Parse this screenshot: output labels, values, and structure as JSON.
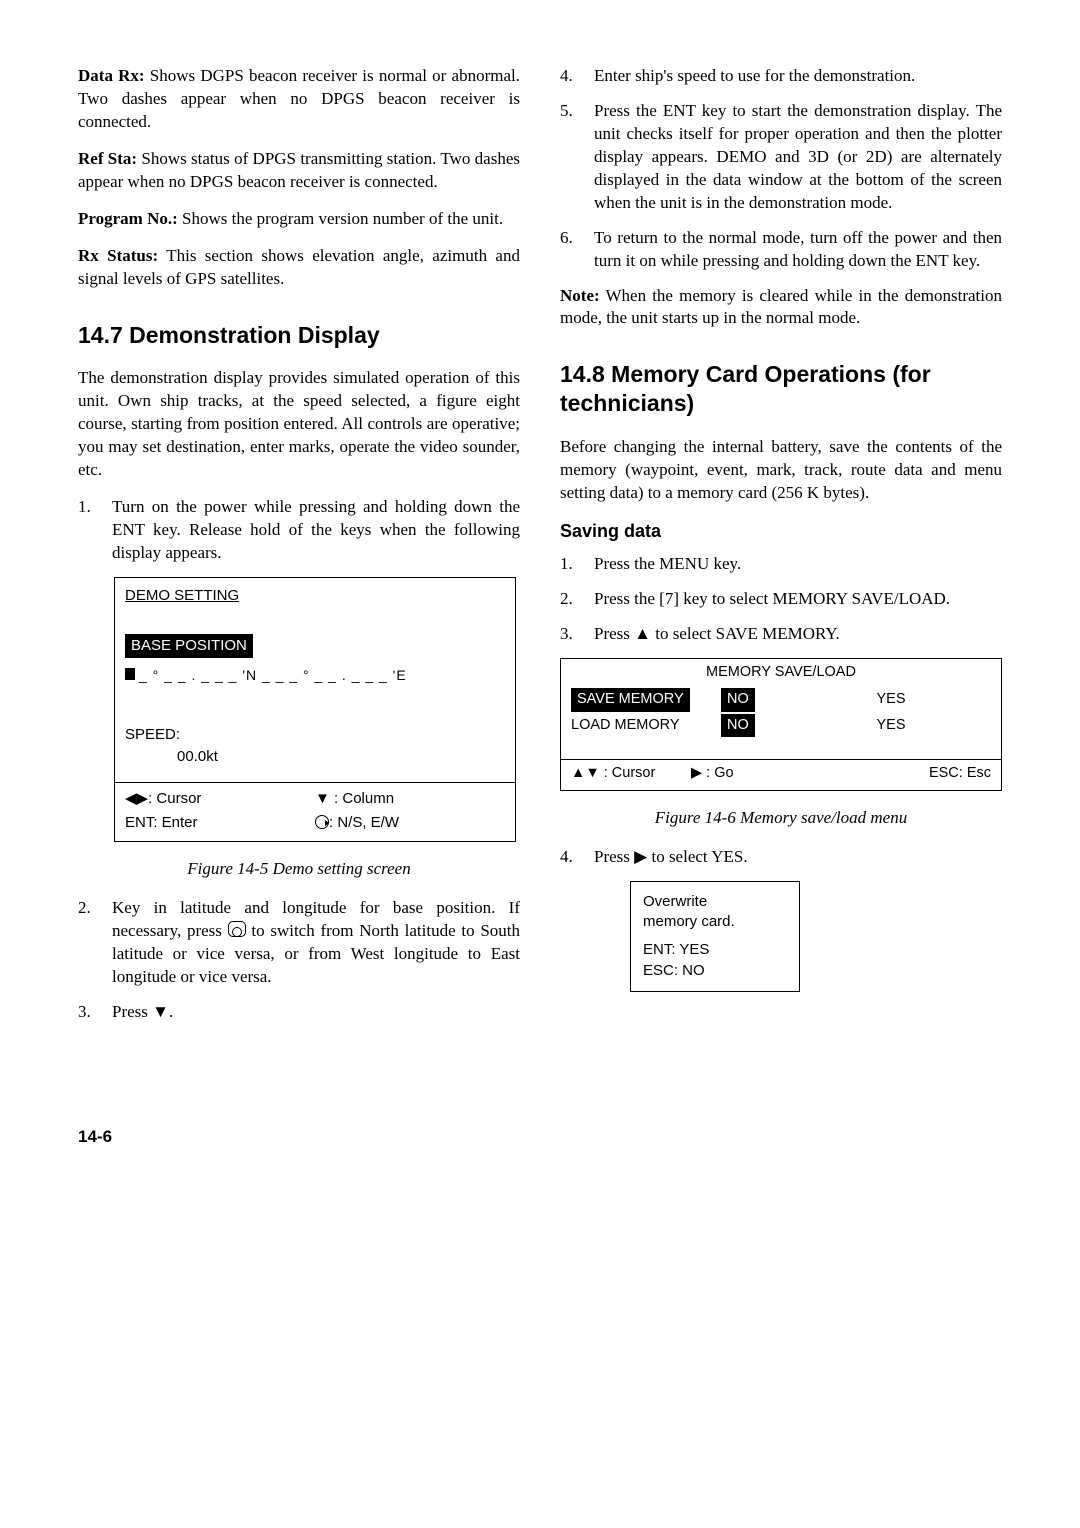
{
  "left": {
    "defs": [
      {
        "term": "Data Rx:",
        "body": " Shows DGPS beacon receiver is normal or abnormal. Two dashes appear when no DPGS beacon receiver is connected."
      },
      {
        "term": "Ref Sta:",
        "body": " Shows status of DPGS transmitting station. Two dashes appear when no DPGS beacon receiver is connected."
      },
      {
        "term": "Program No.:",
        "body": " Shows the program version number of the unit."
      },
      {
        "term": "Rx Status:",
        "body": " This section shows elevation angle, azimuth and signal levels of GPS satellites."
      }
    ],
    "h_147": "14.7 Demonstration Display",
    "intro_147": "The demonstration display provides simulated operation of this unit. Own ship tracks, at the speed selected, a figure eight course, starting from position entered. All controls are operative; you may set destination, enter marks, operate the video sounder, etc.",
    "step1": "Turn on the power while pressing and holding down the ENT key. Release hold of the keys when the following display appears.",
    "figA": {
      "title": "DEMO SETTING",
      "base_label": "BASE POSITION",
      "coords": "_ ° _ _ . _ _ _ 'N  _ _ _ ° _ _ . _ _ _ 'E",
      "speed_label": "SPEED:",
      "speed_value": "00.0kt",
      "bl_tl": ": Cursor",
      "bl_tr": " : Column",
      "bl_bl": "ENT: Enter",
      "bl_br": ": N/S, E/W"
    },
    "captionA": "Figure 14-5 Demo setting screen",
    "step2_a": "Key in latitude and longitude for base position. If necessary, press ",
    "step2_b": " to switch from North latitude to South latitude or vice versa, or from West longitude to East longitude or vice versa.",
    "step3": "Press ▼."
  },
  "right": {
    "step4": "Enter ship's speed to use for the demonstration.",
    "step5": "Press the ENT key to start the demonstration display. The unit checks itself for proper operation and then the plotter display appears. DEMO and 3D (or 2D) are alternately displayed in the data window at the bottom of the screen when the unit is in the demonstration mode.",
    "step6": "To return to the normal mode, turn off the power and then turn it on while pressing and holding down the ENT key.",
    "note_term": "Note:",
    "note_body": " When the memory is cleared while in the demonstration mode, the unit starts up in the normal mode.",
    "h_148": "14.8 Memory Card Operations (for technicians)",
    "intro_148": "Before changing the internal battery, save the contents of the memory (waypoint, event, mark, track, route data and menu setting data) to a memory card (256 K bytes).",
    "h_saving": "Saving data",
    "s1": "Press the MENU key.",
    "s2": "Press the [7] key to select MEMORY SAVE/LOAD.",
    "s3": "Press ▲ to select SAVE MEMORY.",
    "figB": {
      "title": "MEMORY SAVE/LOAD",
      "row1_label": "SAVE MEMORY",
      "row1_no": "NO",
      "row1_yes": "YES",
      "row2_label": "LOAD MEMORY",
      "row2_no": "NO",
      "row2_yes": "YES",
      "bot_c1": " : Cursor",
      "bot_c2": " : Go",
      "bot_c3": "ESC: Esc"
    },
    "captionB": "Figure 14-6 Memory save/load menu",
    "s4": "Press ▶ to select YES.",
    "figC": {
      "l1": "Overwrite",
      "l2": "memory card.",
      "l3": "ENT: YES",
      "l4": "ESC: NO"
    }
  },
  "page_number": "14-6"
}
